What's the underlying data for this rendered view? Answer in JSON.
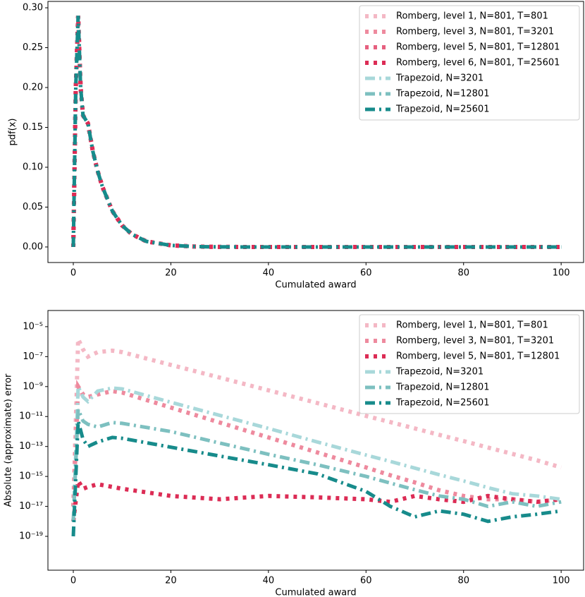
{
  "chart_data": [
    {
      "type": "line",
      "xlabel": "Cumulated award",
      "ylabel": "pdf(x)",
      "xlim": [
        -5.2,
        104.6
      ],
      "xticks": [
        0,
        20,
        40,
        60,
        80,
        100
      ],
      "ylim": [
        -0.0195,
        0.308
      ],
      "yticks": [
        {
          "value": 0,
          "label": "0.00"
        },
        {
          "value": 0.05,
          "label": "0.05"
        },
        {
          "value": 0.1,
          "label": "0.10"
        },
        {
          "value": 0.15,
          "label": "0.15"
        },
        {
          "value": 0.2,
          "label": "0.20"
        },
        {
          "value": 0.25,
          "label": "0.25"
        },
        {
          "value": 0.3,
          "label": "0.30"
        }
      ],
      "log_y": false,
      "legend": "upper right",
      "x": [
        0,
        0.5,
        1,
        1.5,
        2,
        3,
        4,
        5,
        6,
        8,
        10,
        12,
        15,
        20,
        25,
        30,
        40,
        50,
        60,
        70,
        80,
        90,
        100
      ],
      "series": [
        {
          "name": "Romberg, level 1, N=801, T=801",
          "color": "#f4b8c5",
          "dash": "dotted",
          "values": [
            0,
            0.2,
            0.29,
            0.2,
            0.165,
            0.155,
            0.12,
            0.095,
            0.075,
            0.045,
            0.027,
            0.016,
            0.007,
            0.002,
            0.0005,
            0.0001,
            0,
            0,
            0,
            0,
            0,
            0,
            0
          ]
        },
        {
          "name": "Romberg, level 3, N=801, T=3201",
          "color": "#ee8a9e",
          "dash": "dotted",
          "values": [
            0,
            0.2,
            0.29,
            0.2,
            0.165,
            0.155,
            0.12,
            0.095,
            0.075,
            0.045,
            0.027,
            0.016,
            0.007,
            0.002,
            0.0005,
            0.0001,
            0,
            0,
            0,
            0,
            0,
            0,
            0
          ]
        },
        {
          "name": "Romberg, level 5, N=801, T=12801",
          "color": "#e6607f",
          "dash": "dotted",
          "values": [
            0,
            0.2,
            0.29,
            0.2,
            0.165,
            0.155,
            0.12,
            0.095,
            0.075,
            0.045,
            0.027,
            0.016,
            0.007,
            0.002,
            0.0005,
            0.0001,
            0,
            0,
            0,
            0,
            0,
            0,
            0
          ]
        },
        {
          "name": "Romberg, level 6, N=801, T=25601",
          "color": "#dc2c55",
          "dash": "dotted",
          "values": [
            0,
            0.2,
            0.29,
            0.2,
            0.165,
            0.155,
            0.12,
            0.095,
            0.075,
            0.045,
            0.027,
            0.016,
            0.007,
            0.002,
            0.0005,
            0.0001,
            0,
            0,
            0,
            0,
            0,
            0,
            0
          ]
        },
        {
          "name": "Trapezoid, N=3201",
          "color": "#a8d8da",
          "dash": "dashdot",
          "values": [
            0,
            0.2,
            0.29,
            0.2,
            0.165,
            0.155,
            0.12,
            0.095,
            0.075,
            0.045,
            0.027,
            0.016,
            0.007,
            0.002,
            0.0005,
            0.0001,
            0,
            0,
            0,
            0,
            0,
            0,
            0
          ]
        },
        {
          "name": "Trapezoid, N=12801",
          "color": "#7dc0c0",
          "dash": "dashdot",
          "values": [
            0,
            0.2,
            0.29,
            0.2,
            0.165,
            0.155,
            0.12,
            0.095,
            0.075,
            0.045,
            0.027,
            0.016,
            0.007,
            0.002,
            0.0005,
            0.0001,
            0,
            0,
            0,
            0,
            0,
            0,
            0
          ]
        },
        {
          "name": "Trapezoid, N=25601",
          "color": "#178b8b",
          "dash": "dashdot",
          "values": [
            0,
            0.2,
            0.29,
            0.2,
            0.165,
            0.155,
            0.12,
            0.095,
            0.075,
            0.045,
            0.027,
            0.016,
            0.007,
            0.002,
            0.0005,
            0.0001,
            0,
            0,
            0,
            0,
            0,
            0,
            0
          ]
        }
      ]
    },
    {
      "type": "line",
      "xlabel": "Cumulated award",
      "ylabel": "Absolute (approximate) error",
      "xlim": [
        -5.2,
        104.6
      ],
      "xticks": [
        0,
        20,
        40,
        60,
        80,
        100
      ],
      "ylim": [
        5.5e-22,
        0.00012
      ],
      "yticks": [
        {
          "value": 1e-05,
          "label": "10⁻⁵"
        },
        {
          "value": 1e-07,
          "label": "10⁻⁷"
        },
        {
          "value": 1e-09,
          "label": "10⁻⁹"
        },
        {
          "value": 1e-11,
          "label": "10⁻¹¹"
        },
        {
          "value": 1e-13,
          "label": "10⁻¹³"
        },
        {
          "value": 1e-15,
          "label": "10⁻¹⁵"
        },
        {
          "value": 1e-17,
          "label": "10⁻¹⁷"
        },
        {
          "value": 1e-19,
          "label": "10⁻¹⁹"
        }
      ],
      "log_y": true,
      "legend": "upper right",
      "x": [
        0,
        1,
        2,
        3,
        5,
        8,
        10,
        20,
        30,
        40,
        50,
        60,
        65,
        70,
        75,
        80,
        85,
        90,
        95,
        100
      ],
      "series": [
        {
          "name": "Romberg, level 1, N=801, T=801",
          "color": "#f4b8c5",
          "dash": "dotted",
          "values": [
            1e-17,
            1.5e-06,
            3e-07,
            1e-07,
            2e-07,
            2.5e-07,
            2e-07,
            2.8e-08,
            4e-09,
            5.6e-10,
            8e-11,
            1.1e-11,
            4.2e-12,
            1.6e-12,
            6e-13,
            2.3e-13,
            8.5e-14,
            3.2e-14,
            1.2e-14,
            4e-15
          ]
        },
        {
          "name": "Romberg, level 3, N=801, T=3201",
          "color": "#ee8a9e",
          "dash": "dotted",
          "values": [
            1e-17,
            1e-09,
            3e-10,
            2e-10,
            3e-10,
            5e-10,
            4e-10,
            4e-11,
            4e-12,
            4e-13,
            4e-14,
            4e-15,
            1.2e-15,
            4e-16,
            1.2e-16,
            5e-17,
            3e-17,
            3e-17,
            2e-17,
            3e-17
          ]
        },
        {
          "name": "Romberg, level 5, N=801, T=12801",
          "color": "#dc2c55",
          "dash": "dotted",
          "values": [
            1e-18,
            5e-16,
            1.5e-16,
            2e-16,
            3e-16,
            2e-16,
            1.5e-16,
            5e-17,
            3e-17,
            5e-17,
            4e-17,
            3e-17,
            2e-17,
            5e-17,
            3e-17,
            2e-17,
            5e-17,
            3e-17,
            2e-17,
            3e-17
          ]
        },
        {
          "name": "Trapezoid, N=3201",
          "color": "#a8d8da",
          "dash": "dashdot",
          "values": [
            1e-18,
            1e-09,
            2e-10,
            1e-10,
            5e-10,
            8e-10,
            7e-10,
            9e-11,
            1.2e-11,
            1.6e-12,
            2e-13,
            2.7e-14,
            1e-14,
            3.6e-15,
            1.3e-15,
            5e-16,
            1.8e-16,
            7e-17,
            5e-17,
            3e-17
          ]
        },
        {
          "name": "Trapezoid, N=12801",
          "color": "#7dc0c0",
          "dash": "dashdot",
          "values": [
            1e-18,
            3e-11,
            5e-12,
            3e-12,
            2e-12,
            4e-12,
            3.5e-12,
            1e-12,
            1.7e-13,
            3e-14,
            6e-15,
            1e-15,
            3.6e-16,
            1.3e-16,
            5e-17,
            3e-17,
            1e-17,
            2e-17,
            1e-17,
            2e-17
          ]
        },
        {
          "name": "Trapezoid, N=25601",
          "color": "#178b8b",
          "dash": "dashdot",
          "values": [
            1e-19,
            5e-12,
            3e-13,
            1e-13,
            2e-13,
            4e-13,
            3.5e-13,
            9e-14,
            2.3e-14,
            6e-15,
            1.5e-15,
            1e-16,
            1e-17,
            2e-18,
            5e-18,
            3e-18,
            1e-18,
            2e-18,
            3e-18,
            5e-18
          ]
        }
      ]
    }
  ]
}
